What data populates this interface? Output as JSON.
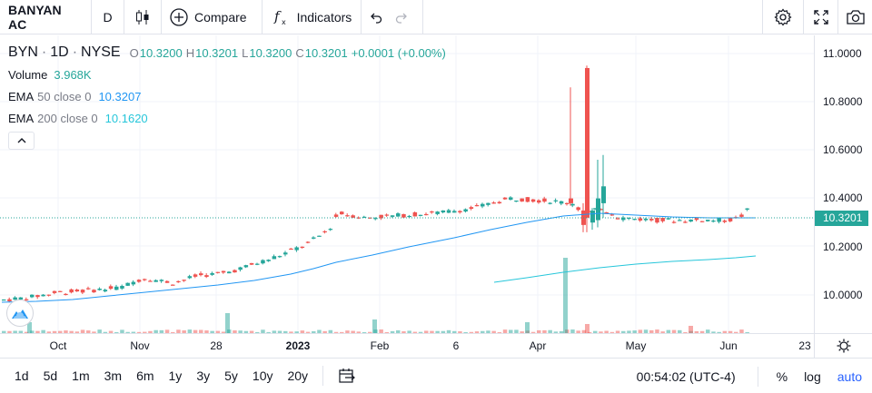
{
  "toolbar": {
    "symbol": "BANYAN AC",
    "interval": "D",
    "compare_label": "Compare",
    "indicators_label": "Indicators"
  },
  "legend": {
    "symbol": "BYN",
    "interval": "1D",
    "exchange": "NYSE",
    "open_label": "O",
    "open": "10.3200",
    "high_label": "H",
    "high": "10.3201",
    "low_label": "L",
    "low": "10.3200",
    "close_label": "C",
    "close": "10.3201",
    "change": "+0.0001 (+0.00%)",
    "volume_label": "Volume",
    "volume": "3.968K",
    "ema50_name": "EMA",
    "ema50_params": "50 close 0",
    "ema50_value": "10.3207",
    "ema200_name": "EMA",
    "ema200_params": "200 close 0",
    "ema200_value": "10.1620"
  },
  "price_axis": {
    "ticks": [
      "11.0000",
      "10.8000",
      "10.6000",
      "10.4000",
      "10.2000",
      "10.0000"
    ],
    "last_price": "10.3201"
  },
  "time_axis": {
    "ticks": [
      "Oct",
      "Nov",
      "28",
      "2023",
      "Feb",
      "6",
      "Apr",
      "May",
      "Jun",
      "23"
    ]
  },
  "bottom_bar": {
    "ranges": [
      "1d",
      "5d",
      "1m",
      "3m",
      "6m",
      "1y",
      "3y",
      "5y",
      "10y",
      "20y"
    ],
    "clock": "00:54:02 (UTC-4)",
    "percent_label": "%",
    "log_label": "log",
    "auto_label": "auto"
  },
  "colors": {
    "up": "#26a69a",
    "down": "#ef5350",
    "ema50": "#2196f3",
    "ema200": "#26c6da",
    "active": "#2962ff"
  },
  "chart_data": {
    "type": "candlestick",
    "y_range": [
      9.86,
      11.06
    ],
    "sessions_shown": [
      {
        "date": "Oct",
        "o": 9.99,
        "h": 10.0,
        "l": 9.98,
        "c": 9.99
      },
      {
        "date": "Nov",
        "o": 10.07,
        "h": 10.1,
        "l": 10.03,
        "c": 10.05
      },
      {
        "date": "28",
        "o": 10.06,
        "h": 10.08,
        "l": 10.04,
        "c": 10.07
      },
      {
        "date": "2023",
        "o": 10.2,
        "h": 10.22,
        "l": 10.19,
        "c": 10.21
      },
      {
        "date": "Feb",
        "o": 10.31,
        "h": 10.33,
        "l": 10.29,
        "c": 10.32
      },
      {
        "date": "6",
        "o": 10.35,
        "h": 10.36,
        "l": 10.34,
        "c": 10.35
      },
      {
        "date": "Apr",
        "o": 10.39,
        "h": 10.45,
        "l": 10.36,
        "c": 10.4
      },
      {
        "date": "May",
        "o": 10.31,
        "h": 10.33,
        "l": 10.3,
        "c": 10.31
      },
      {
        "date": "Jun",
        "o": 10.32,
        "h": 10.36,
        "l": 10.31,
        "c": 10.35
      }
    ],
    "spike": {
      "o": 10.94,
      "h": 10.95,
      "l": 10.26,
      "c": 10.32
    }
  }
}
